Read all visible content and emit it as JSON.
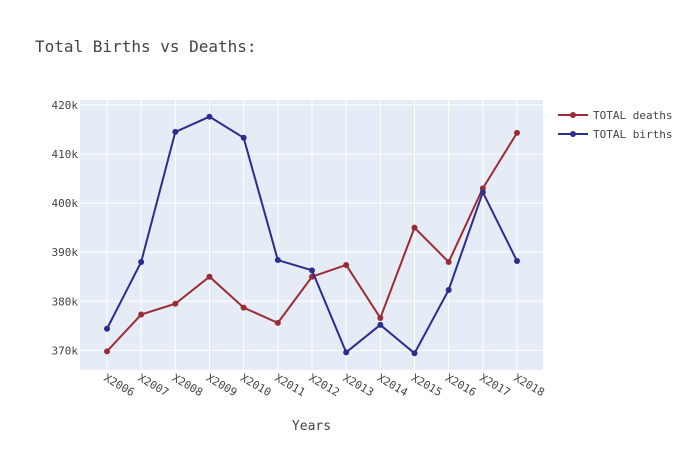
{
  "chart_data": {
    "type": "line",
    "title": "Total Births vs Deaths:",
    "xlabel": "Years",
    "ylabel": "",
    "categories": [
      "X2006",
      "X2007",
      "X2008",
      "X2009",
      "X2010",
      "X2011",
      "X2012",
      "X2013",
      "X2014",
      "X2015",
      "X2016",
      "X2017",
      "X2018"
    ],
    "ylim": [
      366000,
      421000
    ],
    "yticks": [
      370000,
      380000,
      390000,
      400000,
      410000,
      420000
    ],
    "ytick_labels": [
      "370k",
      "380k",
      "390k",
      "400k",
      "410k",
      "420k"
    ],
    "grid": true,
    "legend_position": "top-right",
    "series": [
      {
        "name": "TOTAL deaths",
        "color": "#9b2b34",
        "values": [
          369800,
          377300,
          379500,
          385000,
          378700,
          375600,
          385000,
          387400,
          376600,
          395000,
          388000,
          403000,
          414300
        ]
      },
      {
        "name": "TOTAL births",
        "color": "#2b2d8f",
        "values": [
          374400,
          388000,
          414500,
          417600,
          413300,
          388400,
          386300,
          369600,
          375200,
          369400,
          382300,
          402200,
          388200
        ]
      }
    ]
  }
}
